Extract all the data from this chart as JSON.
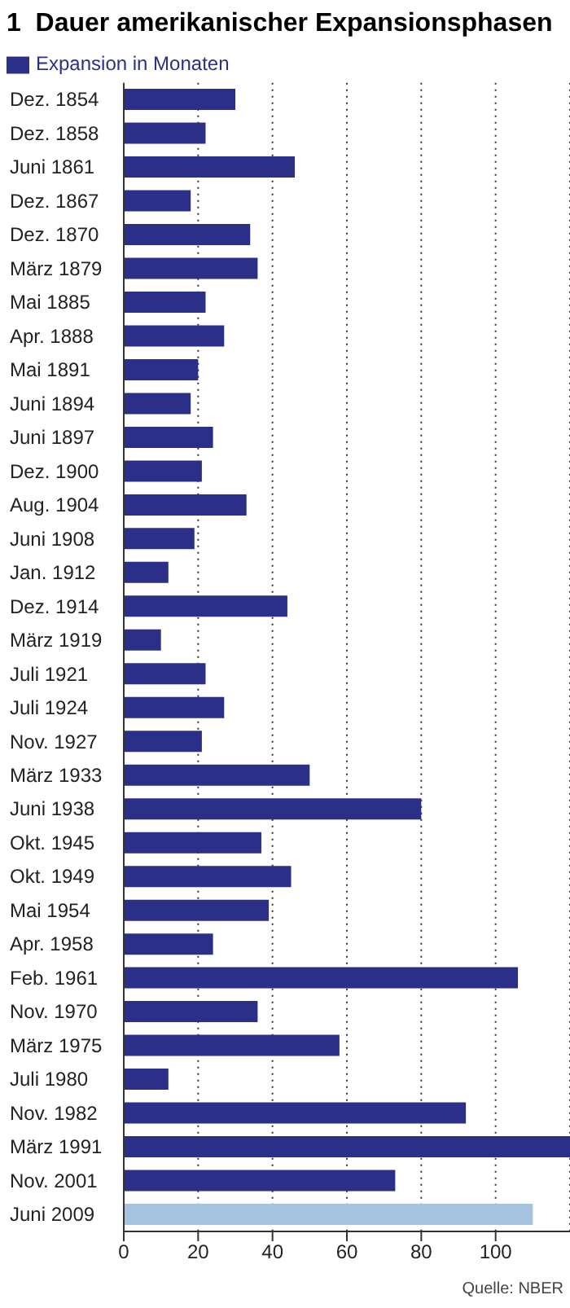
{
  "chart_data": {
    "type": "bar",
    "orientation": "horizontal",
    "title": "1  Dauer amerikanischer Expansionsphasen",
    "categories": [
      "Dez. 1854",
      "Dez. 1858",
      "Juni 1861",
      "Dez. 1867",
      "Dez. 1870",
      "März 1879",
      "Mai 1885",
      "Apr. 1888",
      "Mai 1891",
      "Juni 1894",
      "Juni 1897",
      "Dez. 1900",
      "Aug. 1904",
      "Juni 1908",
      "Jan. 1912",
      "Dez. 1914",
      "März 1919",
      "Juli 1921",
      "Juli 1924",
      "Nov. 1927",
      "März 1933",
      "Juni 1938",
      "Okt. 1945",
      "Okt. 1949",
      "Mai 1954",
      "Apr. 1958",
      "Feb. 1961",
      "Nov. 1970",
      "März 1975",
      "Juli 1980",
      "Nov. 1982",
      "März 1991",
      "Nov. 2001",
      "Juni 2009"
    ],
    "series": [
      {
        "name": "Expansion in Monaten",
        "color": "#2b2f87",
        "values": [
          30,
          22,
          46,
          18,
          34,
          36,
          22,
          27,
          20,
          18,
          24,
          21,
          33,
          19,
          12,
          44,
          10,
          22,
          27,
          21,
          50,
          80,
          37,
          45,
          39,
          24,
          106,
          36,
          58,
          12,
          92,
          120,
          73,
          110
        ],
        "colors": [
          "#2b2f87",
          "#2b2f87",
          "#2b2f87",
          "#2b2f87",
          "#2b2f87",
          "#2b2f87",
          "#2b2f87",
          "#2b2f87",
          "#2b2f87",
          "#2b2f87",
          "#2b2f87",
          "#2b2f87",
          "#2b2f87",
          "#2b2f87",
          "#2b2f87",
          "#2b2f87",
          "#2b2f87",
          "#2b2f87",
          "#2b2f87",
          "#2b2f87",
          "#2b2f87",
          "#2b2f87",
          "#2b2f87",
          "#2b2f87",
          "#2b2f87",
          "#2b2f87",
          "#2b2f87",
          "#2b2f87",
          "#2b2f87",
          "#2b2f87",
          "#2b2f87",
          "#2b2f87",
          "#2b2f87",
          "#a6c4df"
        ]
      }
    ],
    "xlim": [
      0,
      120
    ],
    "xticks": [
      0,
      20,
      40,
      60,
      80,
      100
    ],
    "grid": "x",
    "legend": "top left",
    "annotations": [
      "Quelle: NBER"
    ]
  }
}
